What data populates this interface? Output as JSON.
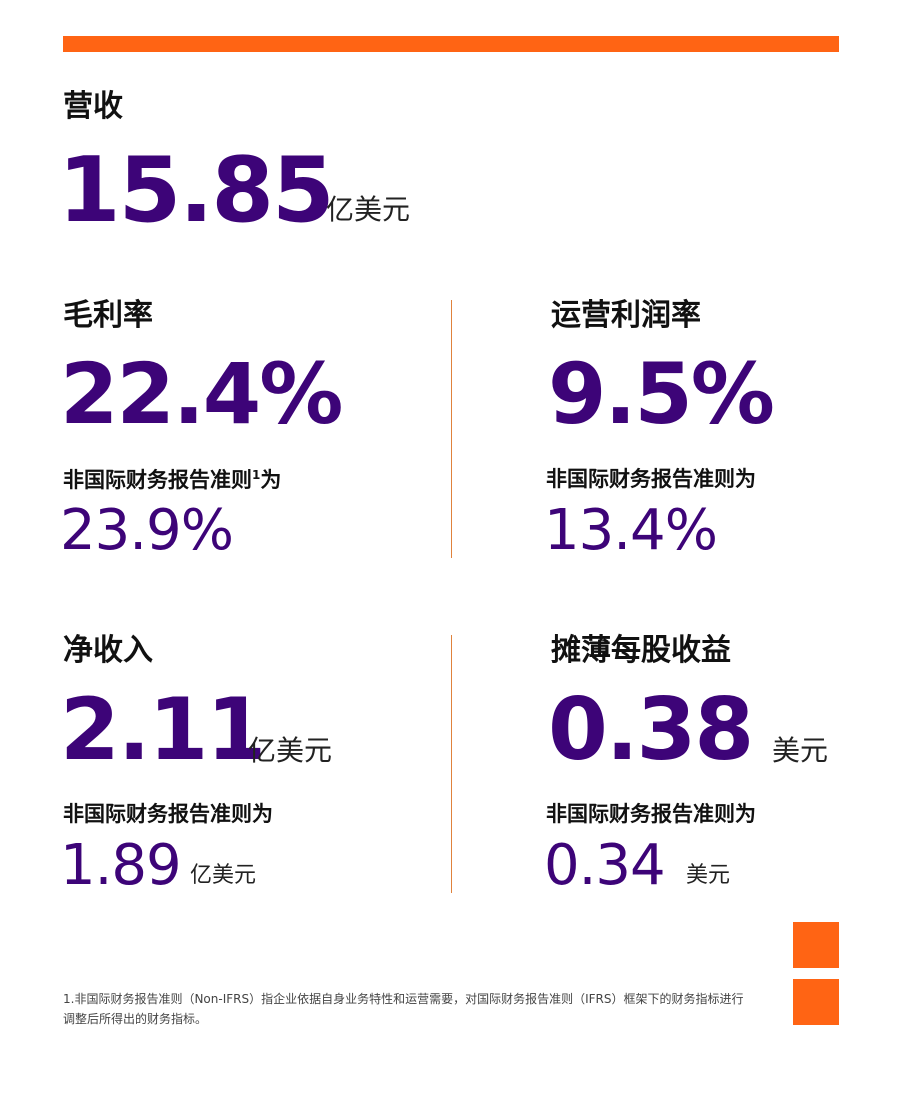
{
  "colors": {
    "accent_orange": "#ff6414",
    "brand_purple": "#3d0478"
  },
  "revenue": {
    "label": "营收",
    "value": "15.85",
    "unit": "亿美元"
  },
  "gross_margin": {
    "label": "毛利率",
    "value": "22.4%",
    "non_ifrs_label": "非国际财务报告准则",
    "footnote_ref": "1",
    "non_ifrs_suffix": "为",
    "non_ifrs_value": "23.9%"
  },
  "operating_margin": {
    "label": "运营利润率",
    "value": "9.5%",
    "non_ifrs_label": "非国际财务报告准则为",
    "non_ifrs_value": "13.4%"
  },
  "net_income": {
    "label": "净收入",
    "value": "2.11",
    "unit": "亿美元",
    "non_ifrs_label": "非国际财务报告准则为",
    "non_ifrs_value": "1.89",
    "non_ifrs_unit": "亿美元"
  },
  "diluted_eps": {
    "label": "摊薄每股收益",
    "value": "0.38",
    "unit": "美元",
    "non_ifrs_label": "非国际财务报告准则为",
    "non_ifrs_value": "0.34",
    "non_ifrs_unit": "美元"
  },
  "footnote": {
    "text": "1.非国际财务报告准则（Non-IFRS）指企业依据自身业务特性和运营需要，对国际财务报告准则（IFRS）框架下的财务指标进行调整后所得出的财务指标。"
  }
}
